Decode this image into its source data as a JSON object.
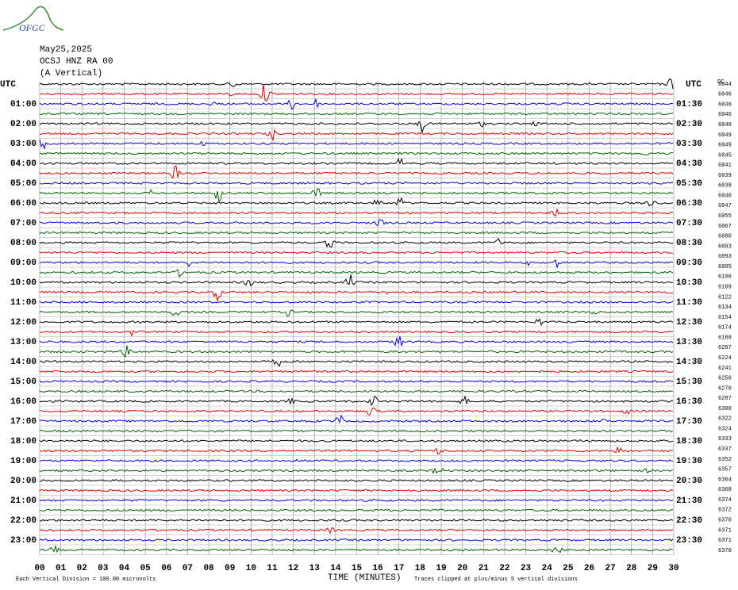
{
  "header": {
    "logo": "OFGC",
    "date": "May25,2025",
    "station": "OCSJ HNZ RA 00",
    "component": "(A Vertical)"
  },
  "axis": {
    "left_label": "UTC",
    "right_label": "UTC",
    "top_right": "DC",
    "left_times": [
      "01:00",
      "02:00",
      "03:00",
      "04:00",
      "05:00",
      "06:00",
      "07:00",
      "08:00",
      "09:00",
      "10:00",
      "11:00",
      "12:00",
      "13:00",
      "14:00",
      "15:00",
      "16:00",
      "17:00",
      "18:00",
      "19:00",
      "20:00",
      "21:00",
      "22:00",
      "23:00"
    ],
    "right_times": [
      "01:30",
      "02:30",
      "03:30",
      "04:30",
      "05:30",
      "06:30",
      "07:30",
      "08:30",
      "09:30",
      "10:30",
      "11:30",
      "12:30",
      "13:30",
      "14:30",
      "15:30",
      "16:30",
      "17:30",
      "18:30",
      "19:30",
      "20:30",
      "21:30",
      "22:30",
      "23:30"
    ],
    "x_ticks": [
      "00",
      "01",
      "02",
      "03",
      "04",
      "05",
      "06",
      "07",
      "08",
      "09",
      "10",
      "11",
      "12",
      "13",
      "14",
      "15",
      "16",
      "17",
      "18",
      "19",
      "20",
      "21",
      "22",
      "23",
      "24",
      "25",
      "26",
      "27",
      "28",
      "29",
      "30"
    ],
    "x_label": "TIME (MINUTES)"
  },
  "dc_offsets": [
    "6044",
    "6046",
    "6046",
    "6046",
    "6048",
    "6049",
    "6049",
    "6045",
    "6041",
    "6039",
    "6038",
    "6040",
    "6047",
    "6055",
    "6067",
    "6080",
    "6093",
    "6093",
    "6095",
    "6106",
    "6109",
    "6122",
    "6134",
    "6154",
    "6174",
    "6188",
    "6207",
    "6224",
    "6241",
    "6256",
    "6270",
    "6287",
    "6300",
    "6322",
    "6324",
    "6333",
    "6337",
    "6352",
    "6357",
    "6364",
    "6368",
    "6374",
    "6372",
    "6370",
    "6371",
    "6371",
    "6370"
  ],
  "trace_colors": [
    "#000000",
    "#e00000",
    "#0000e0",
    "#006000"
  ],
  "footer": {
    "scale_note": "Each Vertical Division =  100.00 microvolts",
    "clip_note": "Traces clipped at plus/minus 5 vertical divisions"
  }
}
